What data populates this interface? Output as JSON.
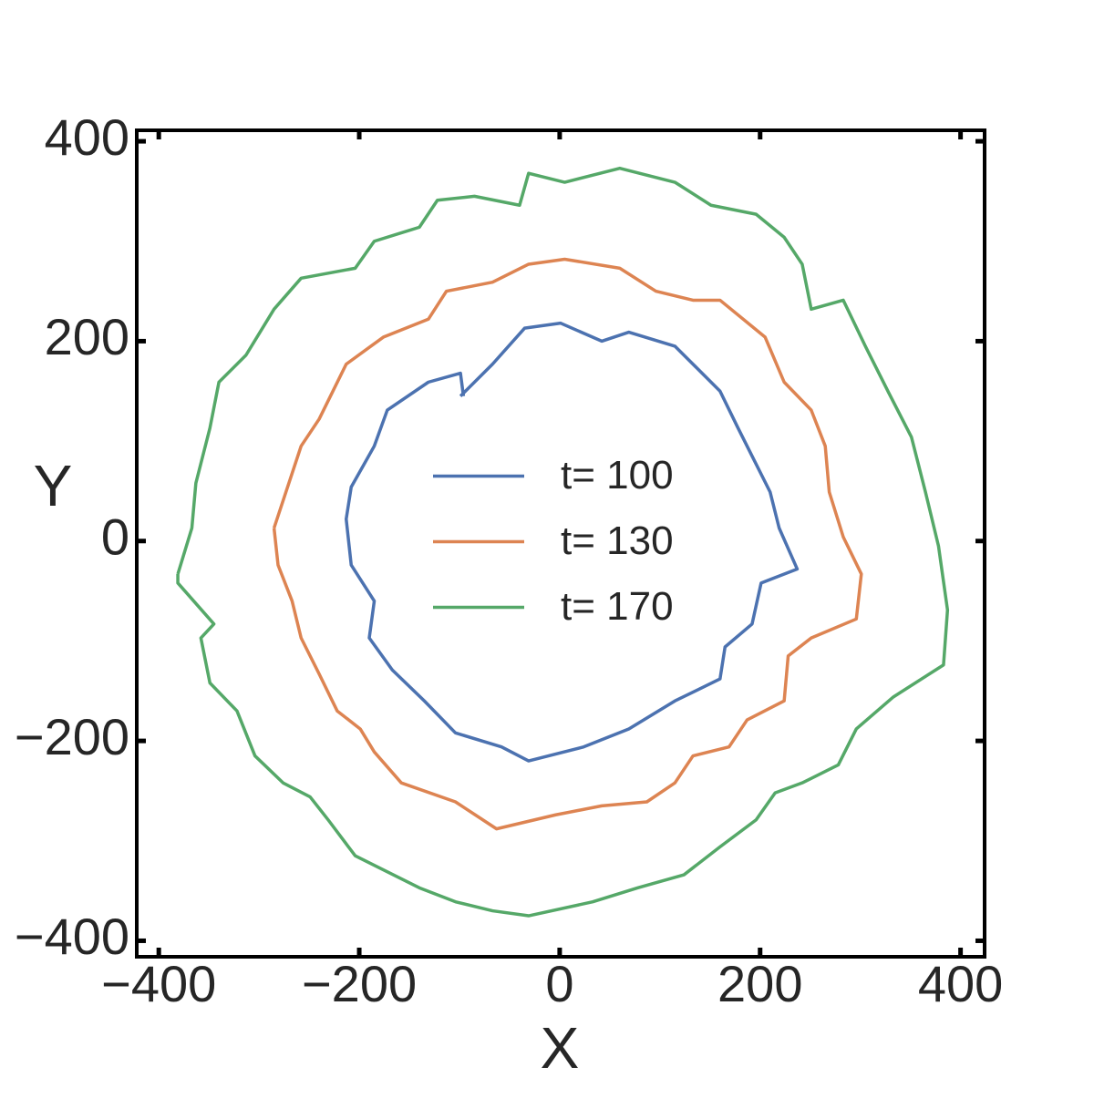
{
  "chart_data": {
    "type": "line",
    "xlabel": "X",
    "ylabel": "Y",
    "xlim": [
      -422,
      424
    ],
    "ylim": [
      -416,
      411
    ],
    "xticks": [
      {
        "value": -400,
        "label": "−400"
      },
      {
        "value": -200,
        "label": "−200"
      },
      0,
      200,
      400
    ],
    "yticks": [
      {
        "value": -400,
        "label": "−400"
      },
      {
        "value": -200,
        "label": "−200"
      },
      0,
      200,
      400
    ],
    "legend": "center",
    "series": [
      {
        "name": "t= 100",
        "color": "#4c72b0",
        "x": [
          -99,
          -67,
          -35,
          1,
          42,
          69,
          115,
          160,
          178,
          210,
          219,
          237,
          201,
          192,
          165,
          160,
          115,
          69,
          24,
          -31,
          -58,
          -104,
          -135,
          -167,
          -190,
          -185,
          -208,
          -213,
          -208,
          -185,
          -172,
          -131,
          -99,
          -96
        ],
        "values": [
          145,
          177,
          213,
          218,
          200,
          209,
          195,
          150,
          113,
          49,
          13,
          -28,
          -42,
          -83,
          -106,
          -138,
          -160,
          -188,
          -206,
          -220,
          -206,
          -192,
          -160,
          -129,
          -97,
          -60,
          -24,
          22,
          54,
          95,
          131,
          159,
          168,
          145
        ]
      },
      {
        "name": "t= 130",
        "color": "#dd8452",
        "x": [
          -285,
          -258,
          -240,
          -213,
          -176,
          -131,
          -113,
          -67,
          -31,
          5,
          60,
          96,
          133,
          160,
          205,
          224,
          251,
          265,
          269,
          283,
          301,
          296,
          251,
          228,
          224,
          187,
          169,
          133,
          115,
          87,
          42,
          -4,
          -63,
          -104,
          -158,
          -185,
          -199,
          -222,
          -240,
          -258,
          -267,
          -281,
          -285
        ],
        "values": [
          13,
          95,
          122,
          177,
          204,
          222,
          250,
          259,
          277,
          282,
          273,
          250,
          241,
          241,
          204,
          159,
          131,
          95,
          49,
          4,
          -33,
          -78,
          -97,
          -115,
          -160,
          -179,
          -206,
          -215,
          -242,
          -261,
          -265,
          -274,
          -288,
          -261,
          -242,
          -211,
          -188,
          -170,
          -133,
          -97,
          -60,
          -24,
          13
        ]
      },
      {
        "name": "t= 170",
        "color": "#55a868",
        "x": [
          -381,
          -367,
          -363,
          -349,
          -340,
          -313,
          -285,
          -258,
          -204,
          -185,
          -140,
          -122,
          -85,
          -40,
          -31,
          5,
          60,
          115,
          151,
          196,
          224,
          242,
          251,
          283,
          305,
          328,
          351,
          365,
          378,
          387,
          383,
          333,
          296,
          278,
          242,
          215,
          196,
          160,
          124,
          78,
          33,
          -31,
          -67,
          -104,
          -140,
          -176,
          -204,
          -231,
          -249,
          -276,
          -304,
          -322,
          -349,
          -358,
          -345,
          -381,
          -381
        ],
        "values": [
          -33,
          13,
          58,
          113,
          159,
          186,
          232,
          263,
          273,
          300,
          314,
          341,
          345,
          336,
          368,
          359,
          373,
          359,
          336,
          327,
          304,
          277,
          232,
          241,
          195,
          149,
          104,
          49,
          -5,
          -69,
          -124,
          -156,
          -188,
          -224,
          -242,
          -252,
          -279,
          -306,
          -334,
          -347,
          -361,
          -375,
          -370,
          -361,
          -347,
          -329,
          -315,
          -279,
          -256,
          -242,
          -215,
          -170,
          -142,
          -97,
          -83,
          -42,
          -33
        ]
      }
    ]
  }
}
